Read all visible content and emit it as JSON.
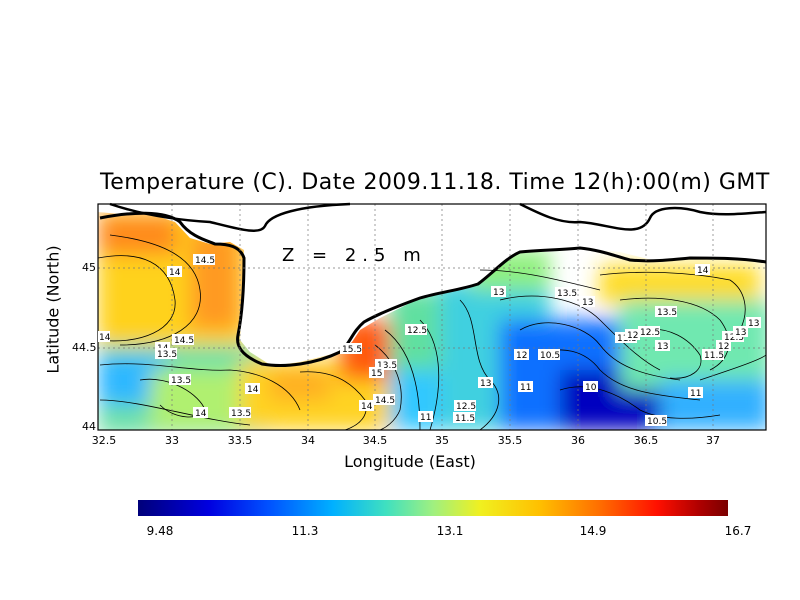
{
  "title": "Temperature (C). Date 2009.11.18. Time 12(h):00(m) GMT",
  "depth_label": "Z = 2.5 m",
  "axes": {
    "xlabel": "Longitude (East)",
    "ylabel": "Latitude (North)",
    "xticks": [
      "32.5",
      "33",
      "33.5",
      "34",
      "34.5",
      "35",
      "35.5",
      "36",
      "36.5",
      "37"
    ],
    "yticks": [
      "45",
      "44.5",
      "44"
    ]
  },
  "colorbar": {
    "ticks": [
      "9.48",
      "11.3",
      "13.1",
      "14.9",
      "16.7"
    ],
    "colors": [
      "#00007a",
      "#0000e0",
      "#00b0ff",
      "#9ff080",
      "#f0f020",
      "#ffc000",
      "#ff1000",
      "#7a0000"
    ]
  },
  "contour_labels": {
    "l1": "14.5",
    "l2": "14",
    "l3": "14.5",
    "l4": "14",
    "l5": "13.5",
    "l6": "14",
    "l7": "13.5",
    "l8": "14",
    "l9": "13.5",
    "l10": "14",
    "l11": "15.5",
    "l12": "12.5",
    "l13": "13.5",
    "l14": "15",
    "l15": "14.5",
    "l16": "14",
    "l17": "11",
    "l18": "12.5",
    "l19": "11.5",
    "l20": "13",
    "l21": "13",
    "l22": "12",
    "l23": "10.5",
    "l24": "11",
    "l25": "13.5",
    "l26": "13",
    "l27": "10",
    "l28": "13.5",
    "l29": "11.5",
    "l30": "12.5",
    "l31": "12",
    "l32": "13",
    "l33": "14",
    "l34": "13",
    "l35": "12.5",
    "l36": "12",
    "l37": "11.5",
    "l38": "11",
    "l39": "10.5",
    "l40": "13"
  }
}
